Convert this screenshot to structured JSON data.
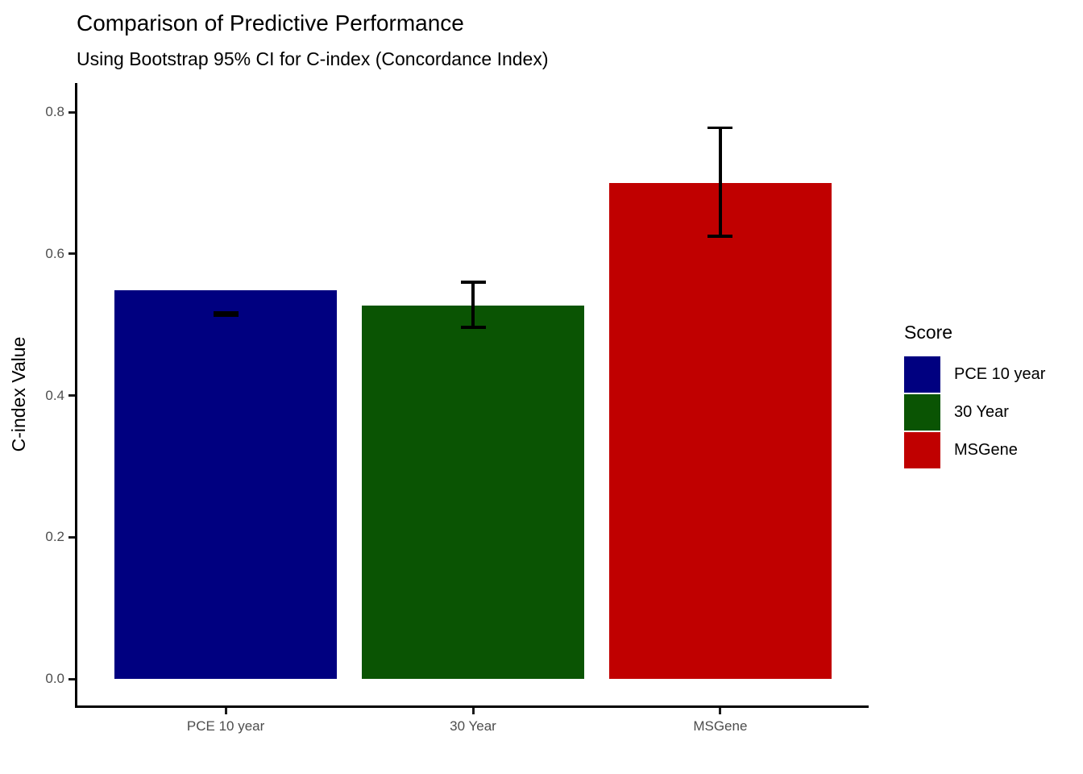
{
  "chart_data": {
    "type": "bar",
    "title": "Comparison of Predictive Performance",
    "subtitle": "Using Bootstrap 95% CI for C-index (Concordance Index)",
    "xlabel": "",
    "ylabel": "C-index Value",
    "categories": [
      "PCE 10 year",
      "30 Year",
      "MSGene"
    ],
    "values": [
      0.549,
      0.527,
      0.7
    ],
    "error_bars": [
      {
        "lower": 0.513,
        "upper": 0.517
      },
      {
        "lower": 0.496,
        "upper": 0.56
      },
      {
        "lower": 0.625,
        "upper": 0.778
      }
    ],
    "bar_colors": [
      "#000080",
      "#0A5403",
      "#C00000"
    ],
    "ylim": [
      0,
      0.8
    ],
    "ytick_values": [
      0,
      0.2,
      0.4,
      0.6,
      0.8
    ],
    "ytick_labels": [
      "0.0",
      "0.2",
      "0.4",
      "0.6",
      "0.8"
    ],
    "grid": false,
    "error_bar_color": "#000000",
    "axis_color": "#000000",
    "tick_label_color": "#4D4D4D",
    "legend": {
      "title": "Score",
      "position": "right",
      "entries": [
        {
          "label": "PCE 10 year",
          "color": "#000080"
        },
        {
          "label": "30 Year",
          "color": "#0A5403"
        },
        {
          "label": "MSGene",
          "color": "#C00000"
        }
      ]
    }
  }
}
